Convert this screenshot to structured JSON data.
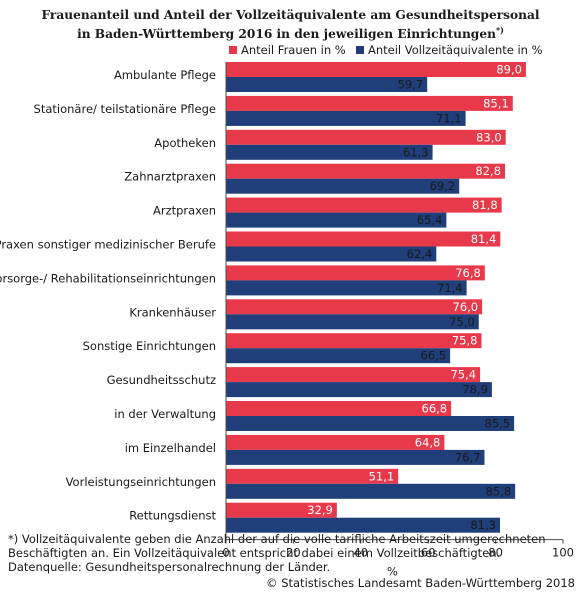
{
  "title_line1": "Frauenanteil und Anteil der Vollzeitäquivalente am Gesundheitspersonal",
  "title_line2": "in Baden-Württemberg 2016 in den jeweiligen Einrichtungen",
  "title_mark": "*)",
  "footnote": {
    "line1": "*) Vollzeitäquivalente geben die Anzahl der auf die volle tarifliche Arbeitszeit umgerechneten",
    "line2": "Beschäftigten an. Ein Vollzeitäquivalent entspricht dabei einem Vollzeitbeschäftigten.",
    "line3": "Datenquelle: Gesundheitspersonalrechnung der Länder."
  },
  "source": "© Statistisches Landesamt Baden-Württemberg 2018",
  "colors": {
    "frauen": "#e8394a",
    "vza": "#1f3e7a",
    "axis": "#4d4d4d"
  },
  "chart_data": {
    "type": "bar",
    "orientation": "horizontal",
    "categories": [
      "Ambulante Pflege",
      "Stationäre/ teilstationäre Pflege",
      "Apotheken",
      "Zahnarztpraxen",
      "Arztpraxen",
      "Praxen sonstiger medizinischer Berufe",
      "Vorsorge-/ Rehabilitationseinrichtungen",
      "Krankenhäuser",
      "Sonstige Einrichtungen",
      "Gesundheitsschutz",
      "in der Verwaltung",
      "im Einzelhandel",
      "Vorleistungseinrichtungen",
      "Rettungsdienst"
    ],
    "series": [
      {
        "name": "Anteil Frauen in %",
        "values": [
          89.0,
          85.1,
          83.0,
          82.8,
          81.8,
          81.4,
          76.8,
          76.0,
          75.8,
          75.4,
          66.8,
          64.8,
          51.1,
          32.9
        ],
        "labels": [
          "89,0",
          "85,1",
          "83,0",
          "82,8",
          "81,8",
          "81,4",
          "76,8",
          "76,0",
          "75,8",
          "75,4",
          "66,8",
          "64,8",
          "51,1",
          "32,9"
        ]
      },
      {
        "name": "Anteil Vollzeitäquivalente in %",
        "values": [
          59.7,
          71.1,
          61.3,
          69.2,
          65.4,
          62.4,
          71.4,
          75.0,
          66.5,
          78.9,
          85.5,
          76.7,
          85.8,
          81.3
        ],
        "labels": [
          "59,7",
          "71,1",
          "61,3",
          "69,2",
          "65,4",
          "62,4",
          "71,4",
          "75,0",
          "66,5",
          "78,9",
          "85,5",
          "76,7",
          "85,8",
          "81,3"
        ]
      }
    ],
    "xlabel": "%",
    "xlim": [
      0,
      100
    ],
    "xticks": [
      0,
      20,
      40,
      60,
      80,
      100
    ],
    "legend_position": "top-right",
    "grid": false
  }
}
